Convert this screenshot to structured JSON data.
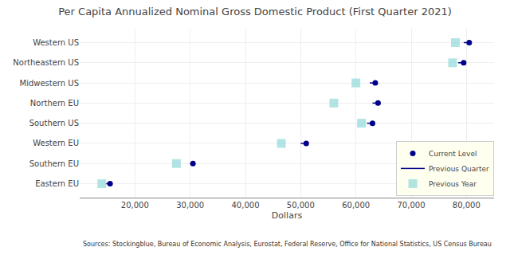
{
  "chart_data": {
    "type": "dot",
    "title": "Per Capita Annualized Nominal Gross Domestic Product (First Quarter 2021)",
    "xlabel": "Dollars",
    "annotations": [
      "Sources: Stockingblue, Bureau of Economic Analysis, Eurostat, Federal Reserve, Office for National Statistics, US Census Bureau"
    ],
    "orientation": "horizontal",
    "categories": [
      "Eastern EU",
      "Southern EU",
      "Western EU",
      "Southern US",
      "Northern EU",
      "Midwestern US",
      "Northeastern US",
      "Western US"
    ],
    "series": [
      {
        "name": "Current Level",
        "type": "scatter",
        "marker": "circle",
        "color": "#00008B",
        "values": [
          15500,
          30500,
          51000,
          63000,
          64000,
          63500,
          79500,
          80500
        ]
      },
      {
        "name": "Previous Quarter",
        "type": "line",
        "color": "#00008B",
        "values": [
          14800,
          30000,
          50000,
          62000,
          63000,
          62500,
          78500,
          79500
        ]
      },
      {
        "name": "Previous Year",
        "type": "scatter",
        "marker": "square",
        "color": "#90d8d8",
        "values": [
          14000,
          27500,
          46500,
          61000,
          56000,
          60000,
          77500,
          78000
        ]
      }
    ],
    "xlim": [
      10000,
      85000
    ],
    "xticks": [
      {
        "value": 20000,
        "label": "20,000"
      },
      {
        "value": 30000,
        "label": "30,000"
      },
      {
        "value": 40000,
        "label": "40,000"
      },
      {
        "value": 50000,
        "label": "50,000"
      },
      {
        "value": 60000,
        "label": "60,000"
      },
      {
        "value": 70000,
        "label": "70,000"
      },
      {
        "value": 80000,
        "label": "80,000"
      }
    ],
    "grid": true,
    "legend": "lower right"
  }
}
